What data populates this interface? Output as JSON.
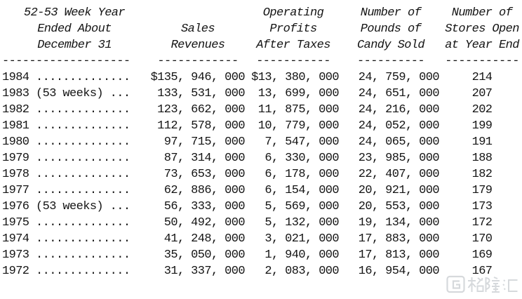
{
  "page": {
    "background": "#ffffff",
    "text_color": "#141414",
    "watermark_color": "#d6d9dc"
  },
  "table": {
    "header": {
      "year": [
        "52-53 Week Year",
        "Ended About",
        "December 31"
      ],
      "sales": [
        "",
        "Sales",
        "Revenues"
      ],
      "profit": [
        "Operating",
        "Profits",
        "After Taxes"
      ],
      "pounds": [
        "Number of",
        "Pounds of",
        "Candy Sold"
      ],
      "stores": [
        "Number of",
        "Stores Open",
        "at Year End"
      ]
    },
    "rules": {
      "year": "-------------------",
      "sales": "------------",
      "profit": "-----------",
      "pounds": "----------",
      "stores": "-----------"
    },
    "rows": [
      {
        "year": "1984 ..............",
        "sales": "$135, 946, 000",
        "profit": "$13, 380, 000",
        "pounds": "24, 759, 000",
        "stores": "214"
      },
      {
        "year": "1983 (53 weeks) ...",
        "sales": "133, 531, 000",
        "profit": "13, 699, 000",
        "pounds": "24, 651, 000",
        "stores": "207"
      },
      {
        "year": "1982 ..............",
        "sales": "123, 662, 000",
        "profit": "11, 875, 000",
        "pounds": "24, 216, 000",
        "stores": "202"
      },
      {
        "year": "1981 ..............",
        "sales": "112, 578, 000",
        "profit": "10, 779, 000",
        "pounds": "24, 052, 000",
        "stores": "199"
      },
      {
        "year": "1980 ..............",
        "sales": "97, 715, 000",
        "profit": "7, 547, 000",
        "pounds": "24, 065, 000",
        "stores": "191"
      },
      {
        "year": "1979 ..............",
        "sales": "87, 314, 000",
        "profit": "6, 330, 000",
        "pounds": "23, 985, 000",
        "stores": "188"
      },
      {
        "year": "1978 ..............",
        "sales": "73, 653, 000",
        "profit": "6, 178, 000",
        "pounds": "22, 407, 000",
        "stores": "182"
      },
      {
        "year": "1977 ..............",
        "sales": "62, 886, 000",
        "profit": "6, 154, 000",
        "pounds": "20, 921, 000",
        "stores": "179"
      },
      {
        "year": "1976 (53 weeks) ...",
        "sales": "56, 333, 000",
        "profit": "5, 569, 000",
        "pounds": "20, 553, 000",
        "stores": "173"
      },
      {
        "year": "1975 ..............",
        "sales": "50, 492, 000",
        "profit": "5, 132, 000",
        "pounds": "19, 134, 000",
        "stores": "172"
      },
      {
        "year": "1974 ..............",
        "sales": "41, 248, 000",
        "profit": "3, 021, 000",
        "pounds": "17, 883, 000",
        "stores": "170"
      },
      {
        "year": "1973 ..............",
        "sales": "35, 050, 000",
        "profit": "1, 940, 000",
        "pounds": "17, 813, 000",
        "stores": "169"
      },
      {
        "year": "1972 ..............",
        "sales": "31, 337, 000",
        "profit": "2, 083, 000",
        "pounds": "16, 954, 000",
        "stores": "167"
      }
    ]
  },
  "watermark": {
    "text": "格隆汇"
  }
}
